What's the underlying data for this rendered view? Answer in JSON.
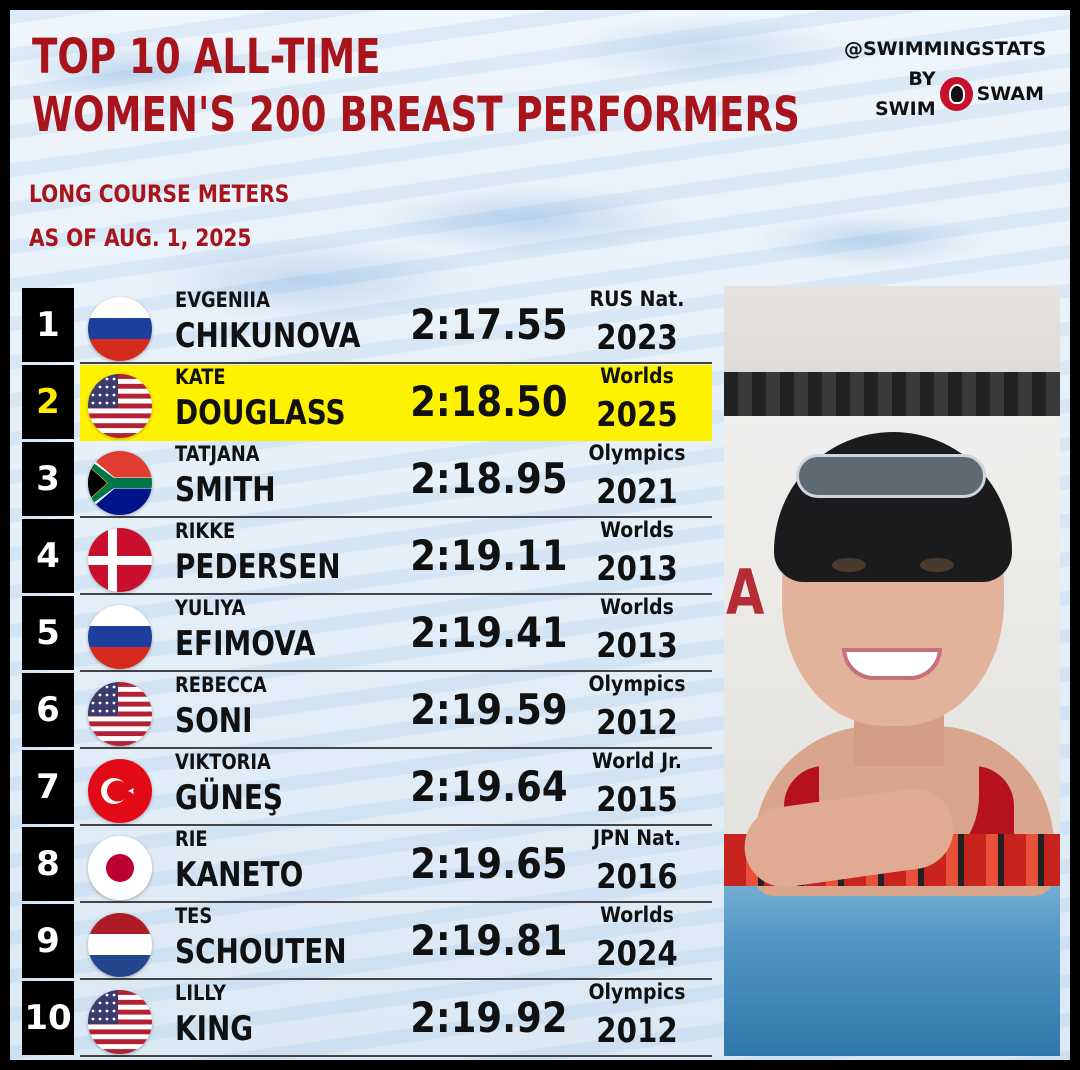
{
  "header": {
    "title_line1": "TOP 10 ALL-TIME",
    "title_line2": "WOMEN'S 200 BREAST PERFORMERS",
    "subtitle1": "LONG COURSE METERS",
    "subtitle2": "AS OF AUG. 1, 2025"
  },
  "brand": {
    "handle": "@SWIMMINGSTATS",
    "by": "BY SWIM",
    "name": "SWAM",
    "logo_icon": "swimmer-head-icon"
  },
  "rows": [
    {
      "rank": "1",
      "first": "EVGENIIA",
      "last": "CHIKUNOVA",
      "time": "2:17.55",
      "meet": "RUS Nat.",
      "year": "2023",
      "flag": "russia"
    },
    {
      "rank": "2",
      "first": "KATE",
      "last": "DOUGLASS",
      "time": "2:18.50",
      "meet": "Worlds",
      "year": "2025",
      "flag": "usa",
      "highlight": true
    },
    {
      "rank": "3",
      "first": "TATJANA",
      "last": "SMITH",
      "time": "2:18.95",
      "meet": "Olympics",
      "year": "2021",
      "flag": "south-africa"
    },
    {
      "rank": "4",
      "first": "RIKKE",
      "last": "PEDERSEN",
      "time": "2:19.11",
      "meet": "Worlds",
      "year": "2013",
      "flag": "denmark"
    },
    {
      "rank": "5",
      "first": "YULIYA",
      "last": "EFIMOVA",
      "time": "2:19.41",
      "meet": "Worlds",
      "year": "2013",
      "flag": "russia"
    },
    {
      "rank": "6",
      "first": "REBECCA",
      "last": "SONI",
      "time": "2:19.59",
      "meet": "Olympics",
      "year": "2012",
      "flag": "usa"
    },
    {
      "rank": "7",
      "first": "VIKTORIA",
      "last": "GÜNEŞ",
      "time": "2:19.64",
      "meet": "World Jr.",
      "year": "2015",
      "flag": "turkey"
    },
    {
      "rank": "8",
      "first": "RIE",
      "last": "KANETO",
      "time": "2:19.65",
      "meet": "JPN Nat.",
      "year": "2016",
      "flag": "japan"
    },
    {
      "rank": "9",
      "first": "TES",
      "last": "SCHOUTEN",
      "time": "2:19.81",
      "meet": "Worlds",
      "year": "2024",
      "flag": "netherlands"
    },
    {
      "rank": "10",
      "first": "LILLY",
      "last": "KING",
      "time": "2:19.92",
      "meet": "Olympics",
      "year": "2012",
      "flag": "usa"
    }
  ],
  "colors": {
    "title_red": "#a8141c",
    "highlight_yellow": "#fff201",
    "rank_bg": "#000000"
  }
}
